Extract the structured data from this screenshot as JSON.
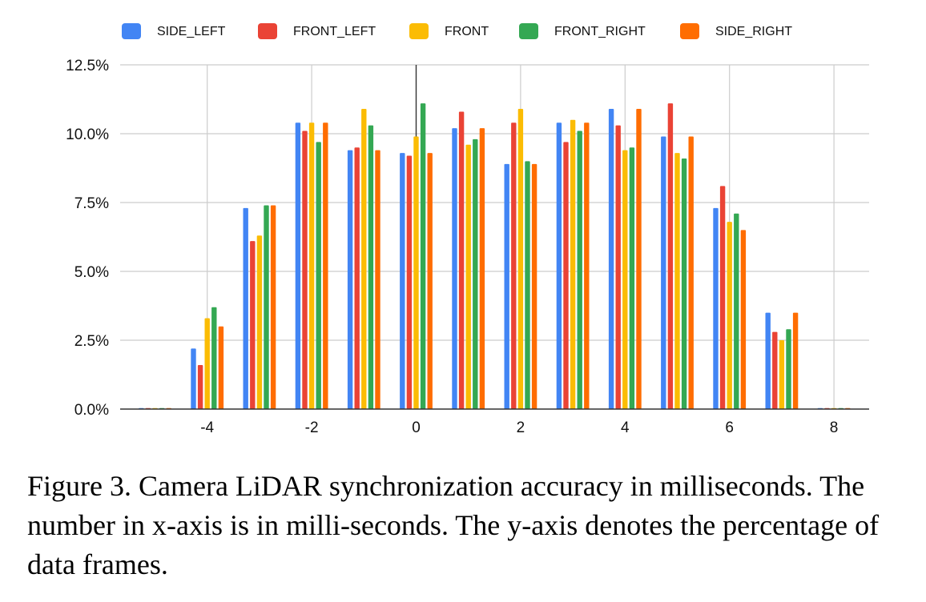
{
  "chart_data": {
    "type": "bar",
    "title": "",
    "xlabel": "",
    "ylabel": "",
    "x": [
      -5,
      -4,
      -3,
      -2,
      -1,
      0,
      1,
      2,
      3,
      4,
      5,
      6,
      7,
      8
    ],
    "xticks": [
      "-4",
      "-2",
      "0",
      "2",
      "4",
      "6",
      "8"
    ],
    "yticks": [
      "0.0%",
      "2.5%",
      "5.0%",
      "7.5%",
      "10.0%",
      "12.5%"
    ],
    "ylim": [
      0,
      12.5
    ],
    "grid": true,
    "legend_position": "top",
    "series": [
      {
        "name": "SIDE_LEFT",
        "color": "#4285F4",
        "values": [
          0,
          2.2,
          7.3,
          10.4,
          9.4,
          9.3,
          10.2,
          8.9,
          10.4,
          10.9,
          9.9,
          7.3,
          3.5,
          0
        ]
      },
      {
        "name": "FRONT_LEFT",
        "color": "#EA4335",
        "values": [
          0,
          1.6,
          6.1,
          10.1,
          9.5,
          9.2,
          10.8,
          10.4,
          9.7,
          10.3,
          11.1,
          8.1,
          2.8,
          0
        ]
      },
      {
        "name": "FRONT",
        "color": "#FBBC04",
        "values": [
          0,
          3.3,
          6.3,
          10.4,
          10.9,
          9.9,
          9.6,
          10.9,
          10.5,
          9.4,
          9.3,
          6.8,
          2.5,
          0
        ]
      },
      {
        "name": "FRONT_RIGHT",
        "color": "#34A853",
        "values": [
          0,
          3.7,
          7.4,
          9.7,
          10.3,
          11.1,
          9.8,
          9.0,
          10.1,
          9.5,
          9.1,
          7.1,
          2.9,
          0
        ]
      },
      {
        "name": "SIDE_RIGHT",
        "color": "#FF6D01",
        "values": [
          0,
          3.0,
          7.4,
          10.4,
          9.4,
          9.3,
          10.2,
          8.9,
          10.4,
          10.9,
          9.9,
          6.5,
          3.5,
          0
        ]
      }
    ]
  },
  "caption": "Figure 3. Camera LiDAR synchronization accuracy in milliseconds. The number in x-axis is in milli-seconds. The y-axis denotes the percentage of data frames."
}
